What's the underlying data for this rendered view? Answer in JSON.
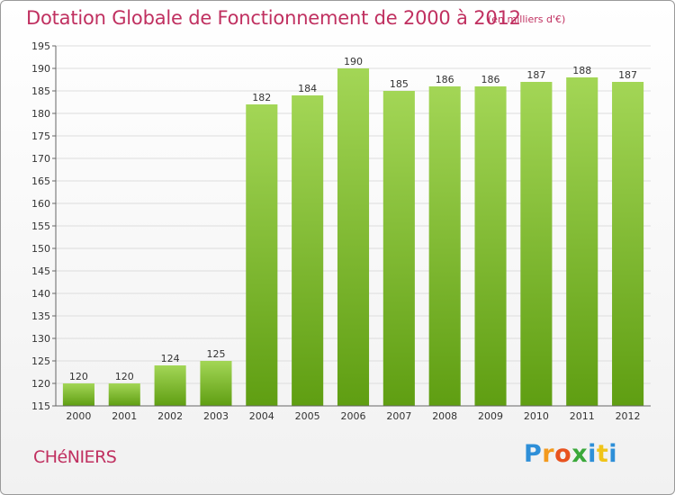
{
  "title": "Dotation Globale de Fonctionnement de 2000 à 2012",
  "subtitle": "(en milliers d'€)",
  "commune": "CHéNIERS",
  "logo": {
    "letters": [
      "P",
      "r",
      "o",
      "x",
      "i",
      "t",
      "i"
    ],
    "colors": [
      "#2e8fd8",
      "#f39a1e",
      "#e8531f",
      "#3aa83a",
      "#2e8fd8",
      "#f0c419",
      "#2e8fd8"
    ]
  },
  "colors": {
    "bar_light": "#a3d656",
    "bar_dark": "#5f9e12",
    "title": "#c03060",
    "grid": "#dddddd",
    "axis": "#666666"
  },
  "chart_data": {
    "type": "bar",
    "categories": [
      "2000",
      "2001",
      "2002",
      "2003",
      "2004",
      "2005",
      "2006",
      "2007",
      "2008",
      "2009",
      "2010",
      "2011",
      "2012"
    ],
    "values": [
      120,
      120,
      124,
      125,
      182,
      184,
      190,
      185,
      186,
      186,
      187,
      188,
      187
    ],
    "ylim": [
      115,
      195
    ],
    "yticks": [
      115,
      120,
      125,
      130,
      135,
      140,
      145,
      150,
      155,
      160,
      165,
      170,
      175,
      180,
      185,
      190,
      195
    ],
    "grid": true
  }
}
